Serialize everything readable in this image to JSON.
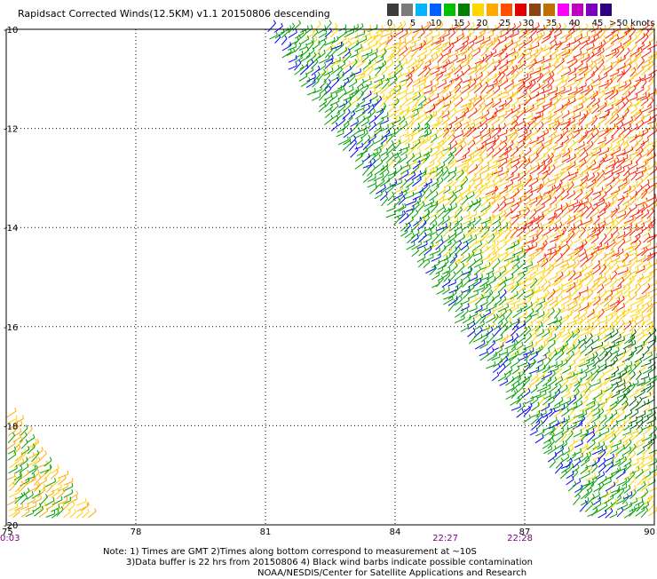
{
  "title": "Rapidsact Corrected Winds(12.5KM) v1.1 20150806 descending",
  "legend": {
    "colors": [
      "#3c3c3c",
      "#7a7a7a",
      "#00b4ff",
      "#0060ff",
      "#00c000",
      "#008000",
      "#ffd700",
      "#ffaa00",
      "#ff5000",
      "#e00000",
      "#8b4513",
      "#c07000",
      "#ff00ff",
      "#c000c0",
      "#8000c0",
      "#300080"
    ],
    "labels": [
      "0",
      "5",
      "10",
      "15",
      "20",
      "25",
      "30",
      "35",
      "40",
      "45"
    ],
    "unit_label": ">50 knots"
  },
  "axes": {
    "lat_labels": [
      "-10",
      "-12",
      "-14",
      "-16",
      "-18",
      "-20"
    ],
    "lon_labels": [
      "75",
      "78",
      "81",
      "84",
      "87",
      "90"
    ],
    "time_labels": [
      "0:03",
      "22:27",
      "22:28"
    ]
  },
  "wind_colors": {
    "blue": "#0000ff",
    "green": "#00a000",
    "darkgreen": "#006000",
    "yellow": "#ffd200",
    "orange": "#ffaa00",
    "red": "#ff2000"
  },
  "notes": {
    "line1": "Note: 1) Times are GMT 2)Times along bottom correspond to measurement at ~10S",
    "line2": "3)Data buffer is 22 hrs from 20150806 4) Black wind barbs indicate possible contamination",
    "line3": "NOAA/NESDIS/Center for Satellite Applications and Research"
  }
}
